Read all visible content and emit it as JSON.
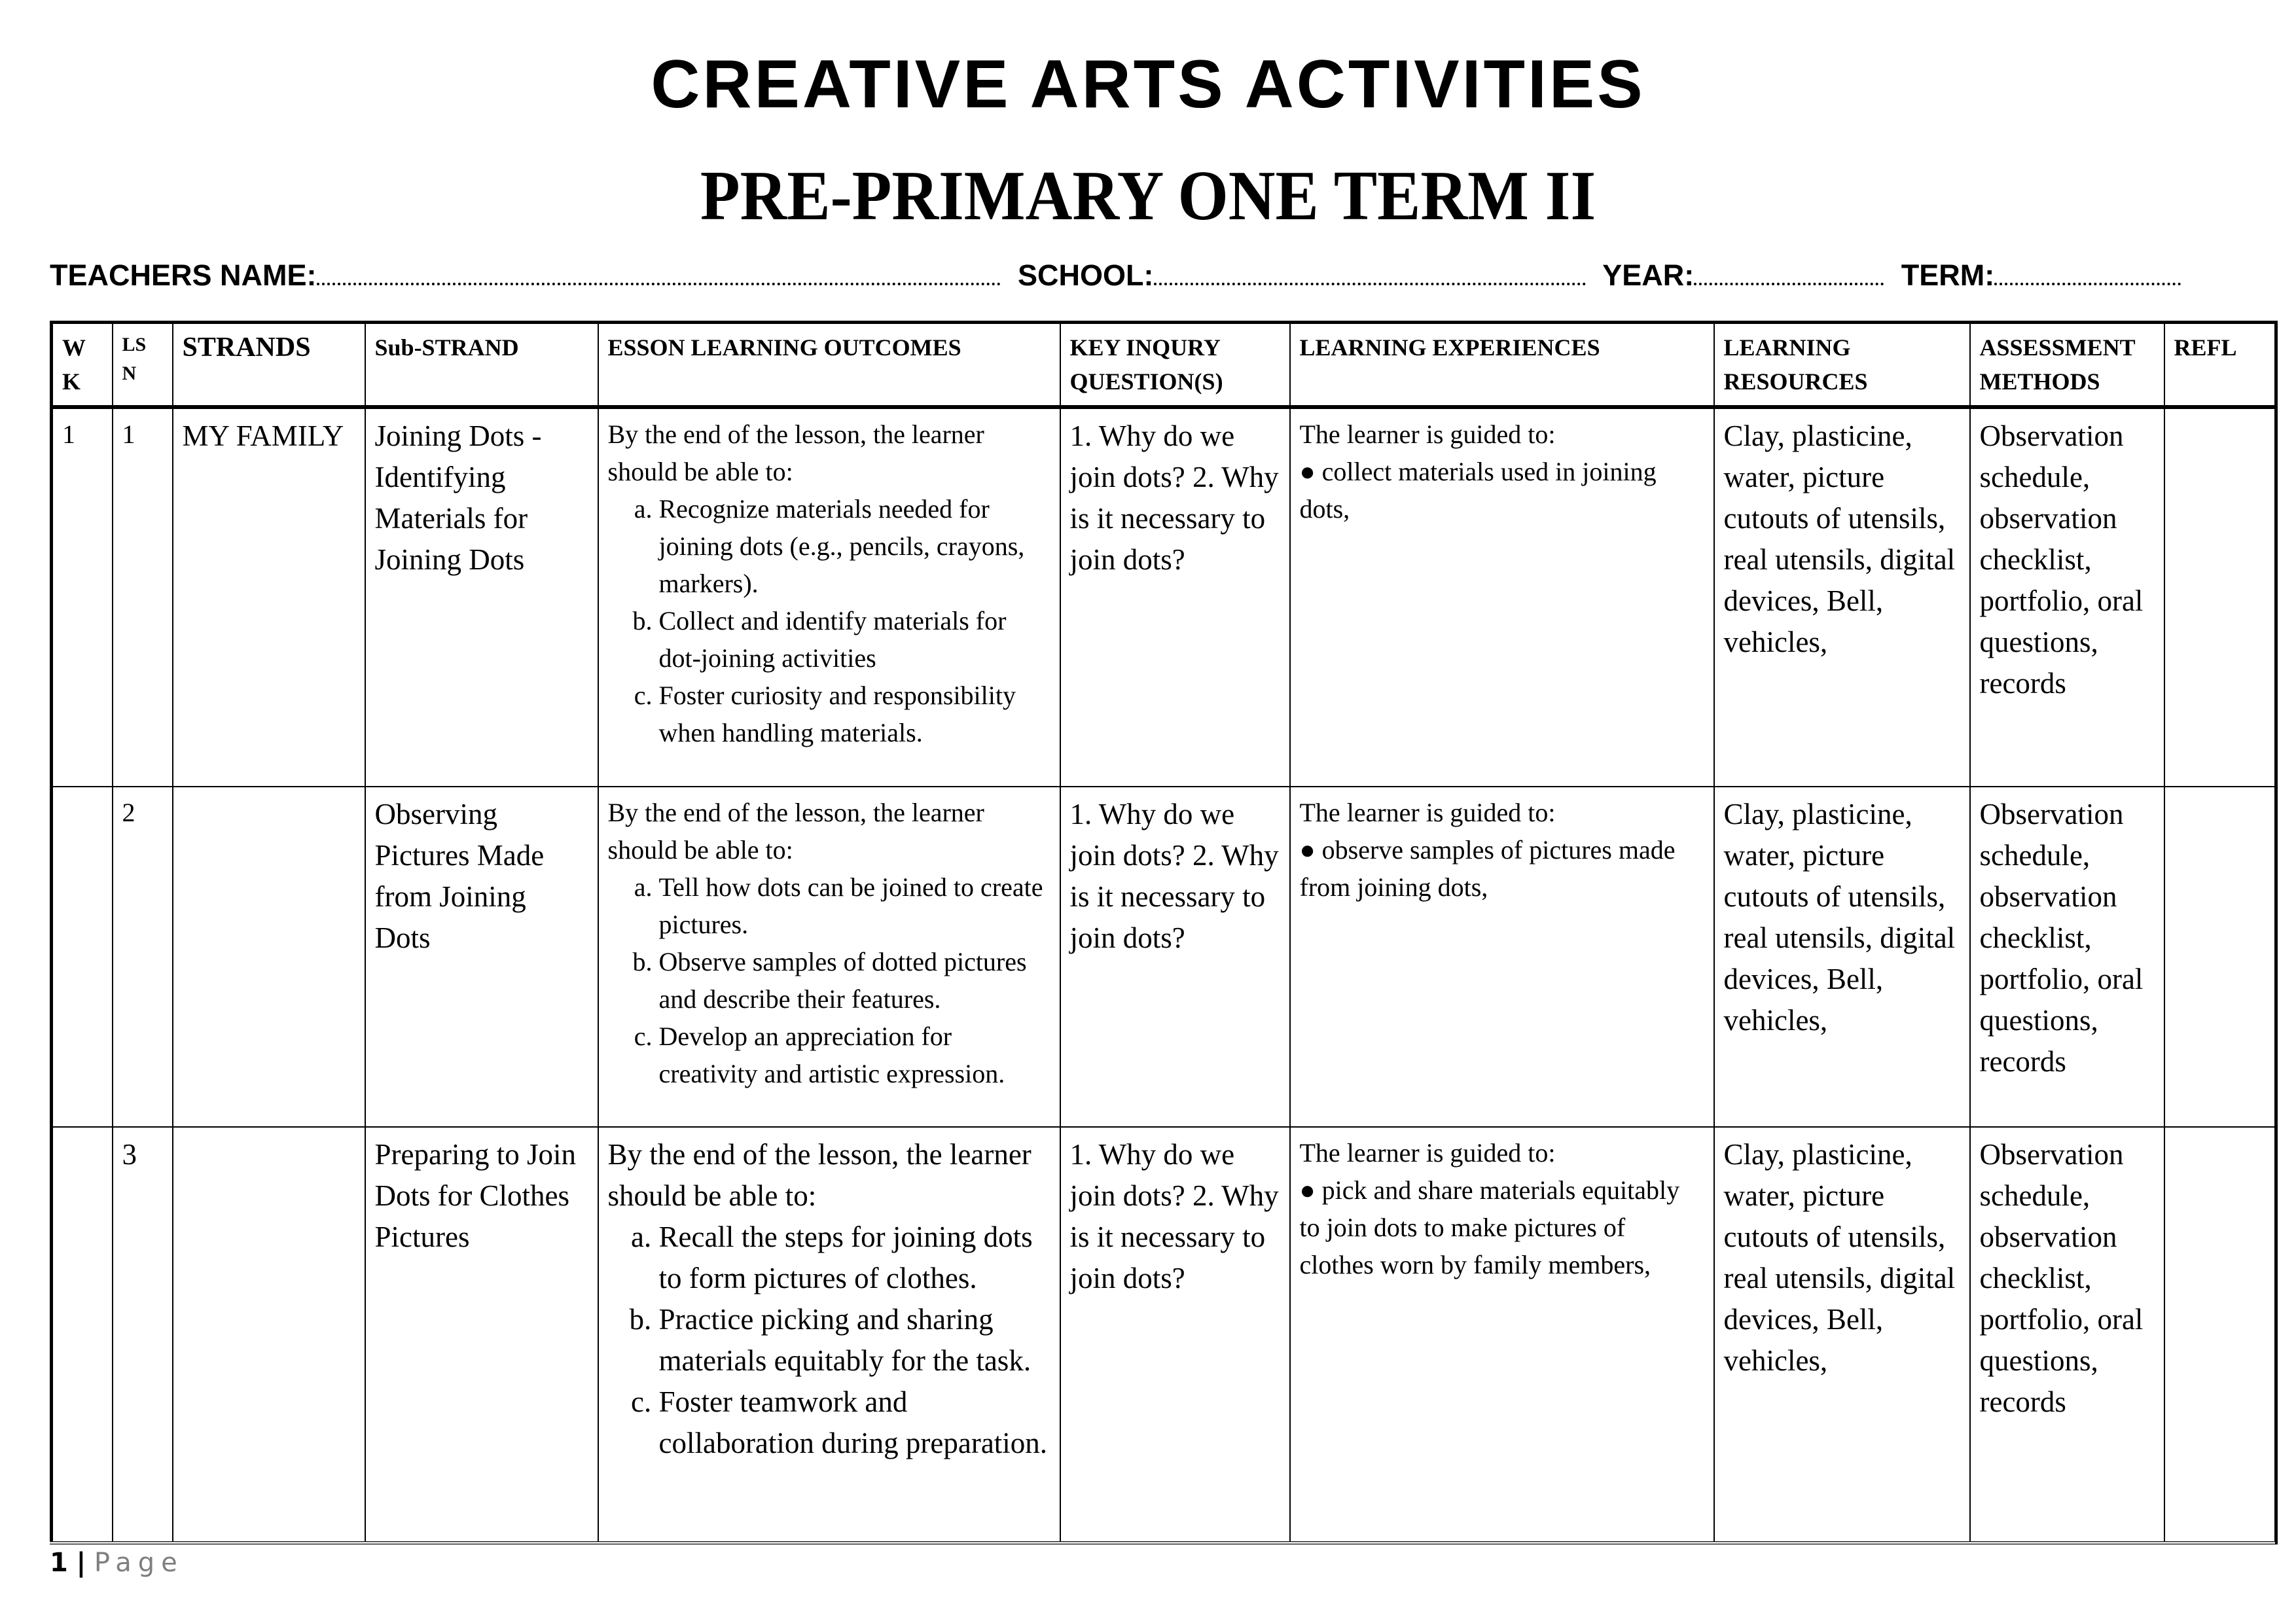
{
  "title": "CREATIVE ARTS ACTIVITIES",
  "subtitle": "PRE-PRIMARY ONE TERM II",
  "meta": {
    "teacher": "TEACHERS NAME:",
    "school": "SCHOOL:",
    "year": "YEAR:",
    "term": "TERM:"
  },
  "headers": [
    "W K",
    "LS N",
    "STRANDS",
    "Sub-STRAND",
    "ESSON LEARNING OUTCOMES",
    "KEY INQURY QUESTION(S)",
    "LEARNING EXPERIENCES",
    "LEARNING RESOURCES",
    "ASSESSMENT METHODS",
    "REFL"
  ],
  "rows": [
    {
      "wk": "1",
      "lsn": "1",
      "strand": "MY FAMILY",
      "substrand": "Joining Dots - Identifying Materials for Joining Dots",
      "outcomes_intro": "By the end of the lesson, the learner should be able to:",
      "outcomes": [
        "Recognize materials needed for joining dots (e.g., pencils, crayons, markers).",
        "Collect and identify materials for dot-joining activities",
        "Foster curiosity and responsibility when handling materials."
      ],
      "questions": "1. Why do we join dots? 2. Why is it necessary to join dots?",
      "experiences_intro": "The learner is guided to:",
      "experiences": "● collect materials used in joining dots,",
      "resources": "Clay, plasticine, water, picture cutouts of utensils, real utensils, digital devices, Bell, vehicles,",
      "assessment": "Observation schedule, observation checklist, portfolio, oral questions, records",
      "reflection": ""
    },
    {
      "wk": "",
      "lsn": "2",
      "strand": "",
      "substrand": "Observing Pictures Made from Joining Dots",
      "outcomes_intro": "By the end of the lesson, the learner should be able to:",
      "outcomes": [
        "Tell how dots can be joined to create pictures.",
        "Observe samples of dotted pictures and describe their features.",
        "Develop an appreciation for creativity and artistic expression."
      ],
      "questions": "1. Why do we join dots? 2. Why is it necessary to join dots?",
      "experiences_intro": "The learner is guided to:",
      "experiences": "● observe samples of pictures made from joining dots,",
      "resources": "Clay, plasticine, water, picture cutouts of utensils, real utensils, digital devices, Bell, vehicles,",
      "assessment": "Observation schedule, observation checklist, portfolio, oral questions, records",
      "reflection": ""
    },
    {
      "wk": "",
      "lsn": "3",
      "strand": "",
      "substrand": "Preparing to Join Dots for Clothes Pictures",
      "outcomes_intro": "By the end of the lesson, the learner should be able to:",
      "outcomes": [
        "Recall the steps for joining dots to form pictures of clothes.",
        "Practice picking and sharing materials equitably for the task.",
        "Foster teamwork and collaboration during preparation."
      ],
      "questions": "1. Why do we join dots? 2. Why is it necessary to join dots?",
      "experiences_intro": "The learner is guided to:",
      "experiences": "● pick and share materials equitably to join dots to make pictures of clothes worn by family members,",
      "resources": "Clay, plasticine, water, picture cutouts of utensils, real utensils, digital devices, Bell, vehicles,",
      "assessment": "Observation schedule, observation checklist, portfolio, oral questions, records",
      "reflection": ""
    }
  ],
  "footer": {
    "page_number": "1",
    "separator": "|",
    "page_label": "Page"
  }
}
